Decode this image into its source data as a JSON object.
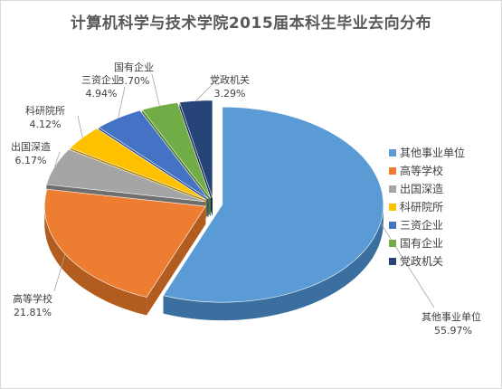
{
  "chart_data": {
    "type": "pie",
    "title": "计算机科学与技术学院2015届本科生毕业去向分布",
    "categories": [
      "其他事业单位",
      "高等学校",
      "出国深造",
      "科研院所",
      "三资企业",
      "国有企业",
      "党政机关"
    ],
    "values": [
      55.97,
      21.81,
      6.17,
      4.12,
      4.94,
      3.7,
      3.29
    ],
    "value_labels": [
      "55.97%",
      "21.81%",
      "6.17%",
      "4.12%",
      "4.94%",
      "3.70%",
      "3.29%"
    ],
    "exploded": true,
    "three_d": true,
    "legend": "right",
    "colors": [
      "#5b9bd5",
      "#ed7d31",
      "#a5a5a5",
      "#ffc000",
      "#4472c4",
      "#70ad47",
      "#264478"
    ],
    "side_colors": [
      "#3a6f9f",
      "#b35c1f",
      "#6e6e6e",
      "#b38600",
      "#2c4f8f",
      "#4a7a2d",
      "#182c50"
    ]
  }
}
